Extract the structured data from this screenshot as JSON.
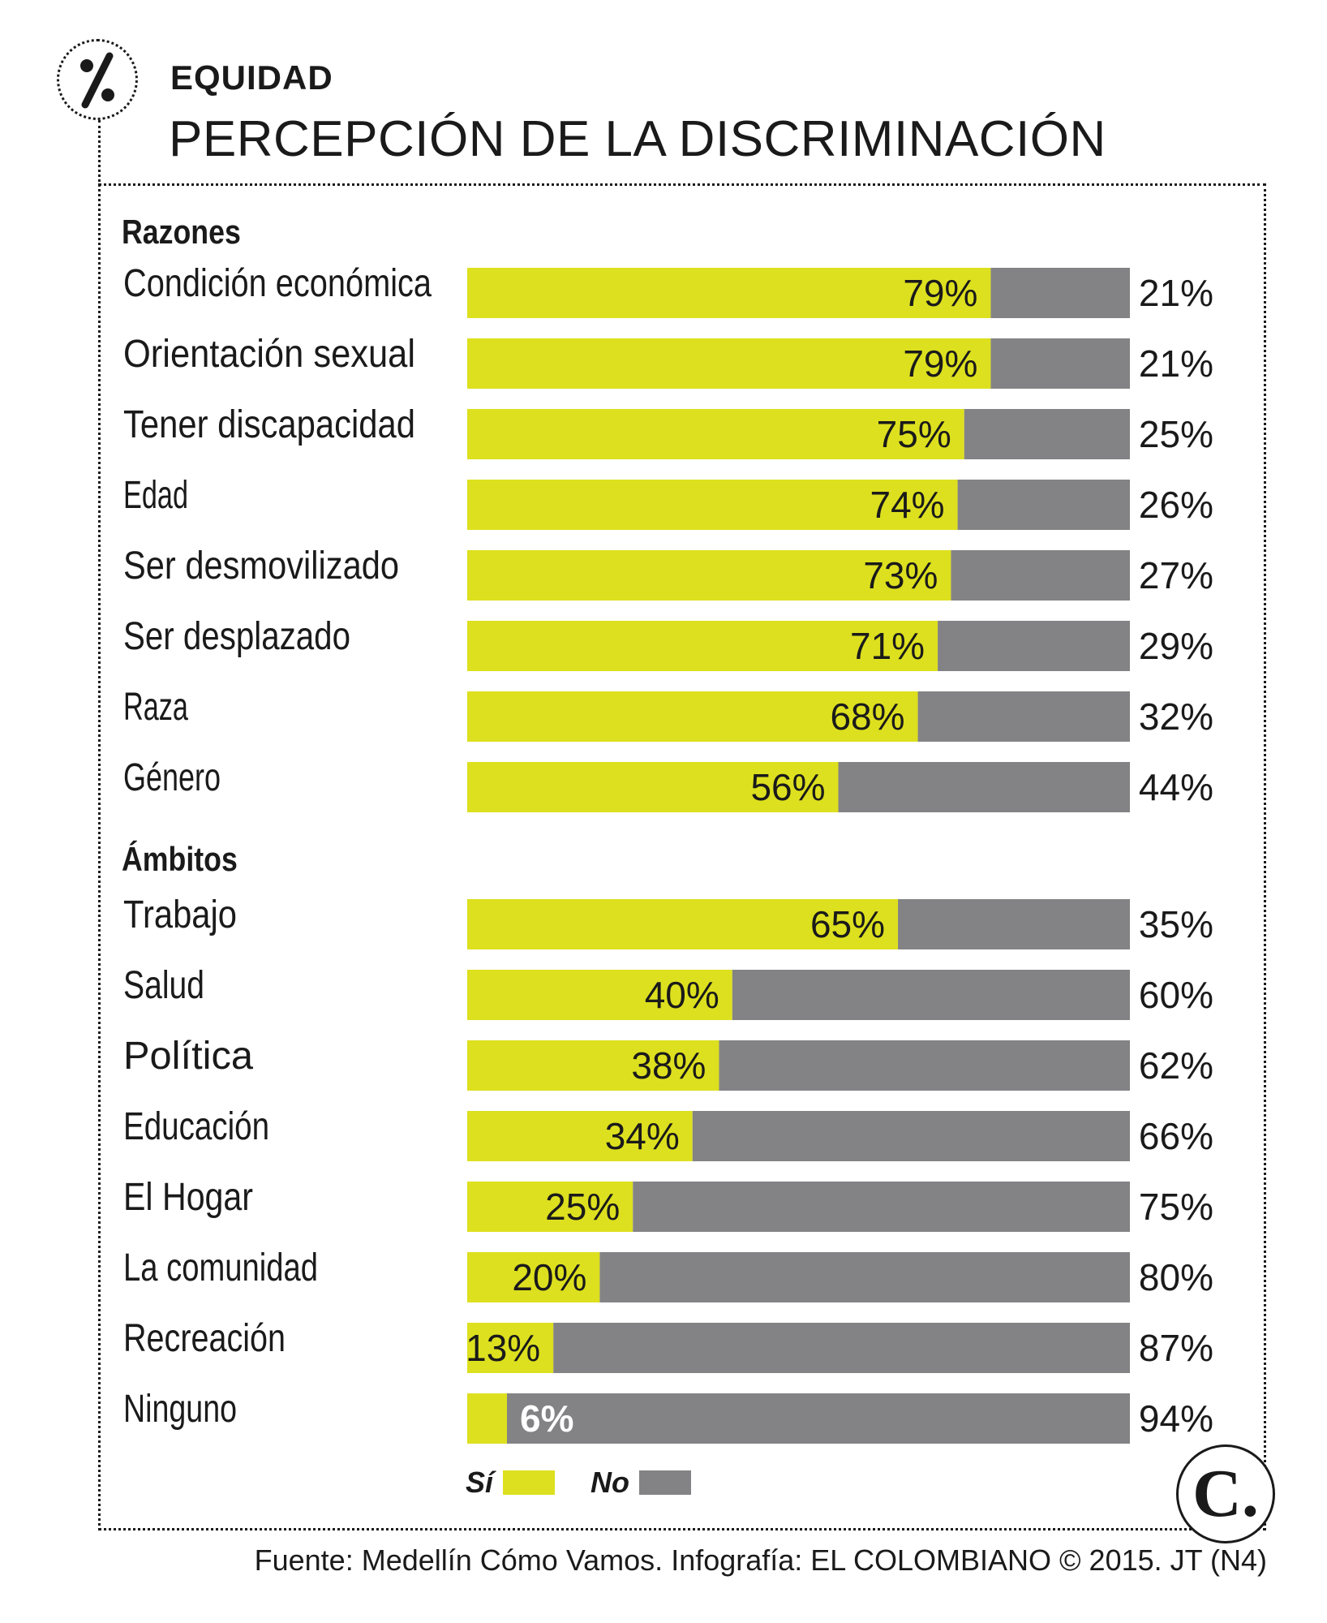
{
  "header": {
    "kicker": "EQUIDAD",
    "title": "PERCEPCIÓN DE LA DISCRIMINACIÓN",
    "logo_icon": "percent-icon"
  },
  "chart_data": {
    "type": "bar",
    "orientation": "horizontal",
    "stacked": true,
    "unit": "%",
    "series": [
      {
        "name": "Sí",
        "color": "#dde01e"
      },
      {
        "name": "No",
        "color": "#838386"
      }
    ],
    "groups": [
      {
        "name": "Razones",
        "categories": [
          "Condición económica",
          "Orientación sexual",
          "Tener discapacidad",
          "Edad",
          "Ser desmovilizado",
          "Ser desplazado",
          "Raza",
          "Género"
        ],
        "si": [
          79,
          79,
          75,
          74,
          73,
          71,
          68,
          56
        ],
        "no": [
          21,
          21,
          25,
          26,
          27,
          29,
          32,
          44
        ]
      },
      {
        "name": "Ámbitos",
        "categories": [
          "Trabajo",
          "Salud",
          "Política",
          "Educación",
          "El Hogar",
          "La comunidad",
          "Recreación",
          "Ninguno"
        ],
        "si": [
          65,
          40,
          38,
          34,
          25,
          20,
          13,
          6
        ],
        "no": [
          35,
          60,
          62,
          66,
          75,
          80,
          87,
          94
        ]
      }
    ],
    "xlim": [
      0,
      100
    ],
    "grid": false,
    "legend_position": "bottom-left"
  },
  "legend": {
    "si_label": "Sí",
    "no_label": "No"
  },
  "brand": {
    "badge_letter": "C."
  },
  "footer": {
    "source": "Fuente: Medellín Cómo Vamos. Infografía: EL COLOMBIANO © 2015. JT (N4)"
  },
  "colors": {
    "si": "#dde01e",
    "no": "#838386",
    "text": "#1a1a1a"
  }
}
